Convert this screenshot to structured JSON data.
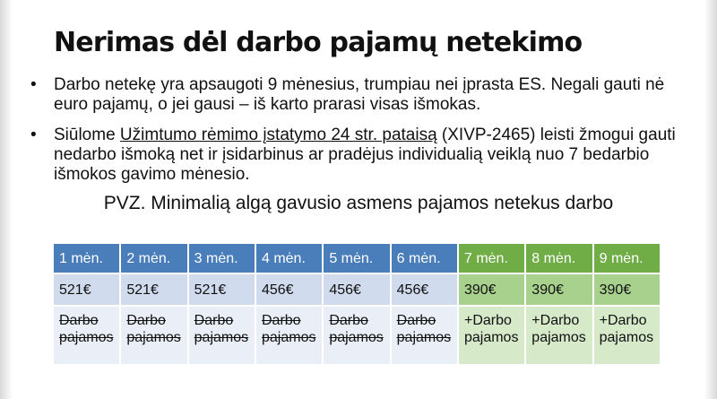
{
  "slide": {
    "title": "Nerimas dėl darbo pajamų netekimo",
    "bullets": [
      {
        "marker": "•",
        "text": "Darbo netekę yra apsaugoti 9 mėnesius, trumpiau nei įprasta ES. Negali gauti nė euro pajamų, o jei gausi – iš karto prarasi visas išmokas."
      },
      {
        "marker": "•",
        "text_before": "Siūlome ",
        "link_text": "Užimtumo rėmimo įstatymo 24 str. pataisą",
        "text_after": " (XIVP-2465) leisti žmogui gauti nedarbo išmoką net ir įsidarbinus ar pradėjus individualią veiklą nuo 7 bedarbio išmokos gavimo mėnesio."
      }
    ],
    "example_heading": "PVZ. Minimalią algą gavusio asmens pajamos netekus darbo"
  },
  "table": {
    "columns": [
      {
        "month": "1 mėn.",
        "amount": "521€",
        "note_line1": "Darbo",
        "note_line2": "pajamos",
        "struck": true
      },
      {
        "month": "2 mėn.",
        "amount": "521€",
        "note_line1": "Darbo",
        "note_line2": "pajamos",
        "struck": true
      },
      {
        "month": "3 mėn.",
        "amount": "521€",
        "note_line1": "Darbo",
        "note_line2": "pajamos",
        "struck": true
      },
      {
        "month": "4 mėn.",
        "amount": "456€",
        "note_line1": "Darbo",
        "note_line2": "pajamos",
        "struck": true
      },
      {
        "month": "5 mėn.",
        "amount": "456€",
        "note_line1": "Darbo",
        "note_line2": "pajamos",
        "struck": true
      },
      {
        "month": "6 mėn.",
        "amount": "456€",
        "note_line1": "Darbo",
        "note_line2": "pajamos",
        "struck": true
      },
      {
        "month": "7 mėn.",
        "amount": "390€",
        "note_line1": "+Darbo",
        "note_line2": "pajamos",
        "struck": false
      },
      {
        "month": "8 mėn.",
        "amount": "390€",
        "note_line1": "+Darbo",
        "note_line2": "pajamos",
        "struck": false
      },
      {
        "month": "9 mėn.",
        "amount": "390€",
        "note_line1": "+Darbo",
        "note_line2": "pajamos",
        "struck": false
      }
    ]
  },
  "colors": {
    "header_blue": "#4a7ebb",
    "header_green": "#70ad47",
    "amount_blue": "#d0dbee",
    "amount_green": "#a9d18e",
    "note_blue": "#e9eef7",
    "note_green": "#d6e9c8"
  }
}
